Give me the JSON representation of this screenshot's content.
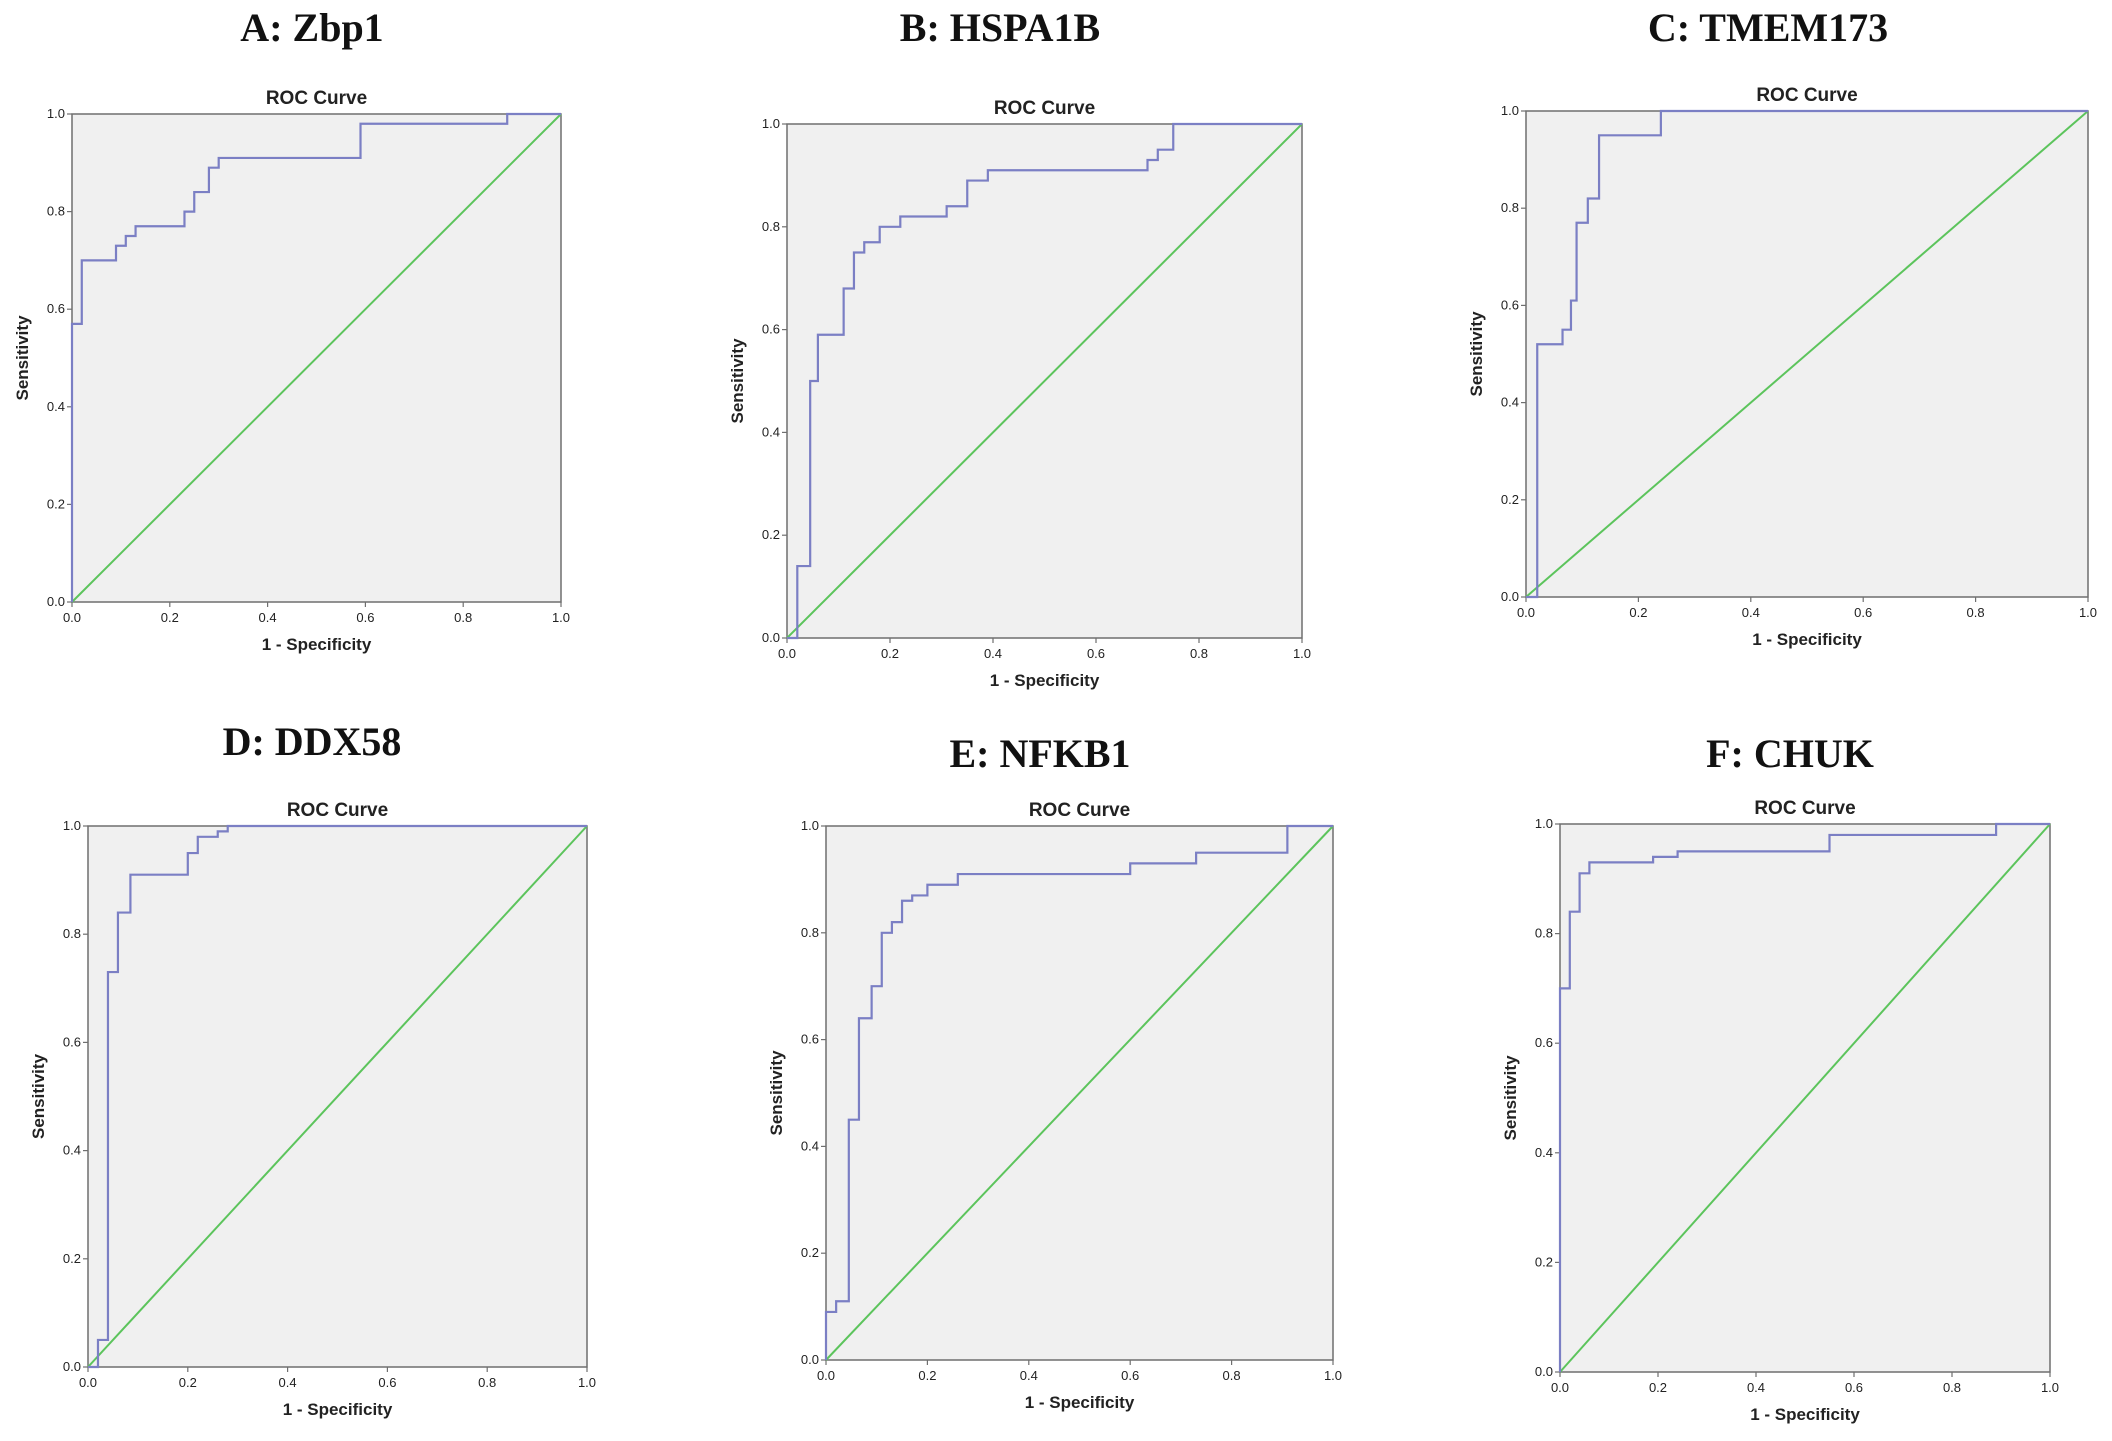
{
  "panels": [
    {
      "title": "A: Zbp1"
    },
    {
      "title": "B: HSPA1B"
    },
    {
      "title": "C: TMEM173"
    },
    {
      "title": "D: DDX58"
    },
    {
      "title": "E: NFKB1"
    },
    {
      "title": "F: CHUK"
    }
  ],
  "colors": {
    "roc_curve": "#7b7fc4",
    "reference_line": "#5cc45c",
    "plot_background": "#f0f0f0",
    "axis": "#6f6f6f"
  },
  "chart_data": [
    {
      "type": "line",
      "title": "ROC Curve",
      "xlabel": "1 - Specificity",
      "ylabel": "Sensitivity",
      "xlim": [
        0,
        1
      ],
      "ylim": [
        0,
        1
      ],
      "xticks": [
        "0.0",
        "0.2",
        "0.4",
        "0.6",
        "0.8",
        "1.0"
      ],
      "yticks": [
        "0.0",
        "0.2",
        "0.4",
        "0.6",
        "0.8",
        "1.0"
      ],
      "grid": false,
      "series": [
        {
          "x": [
            0,
            0,
            0.02,
            0.02,
            0.09,
            0.09,
            0.11,
            0.11,
            0.13,
            0.13,
            0.23,
            0.23,
            0.25,
            0.25,
            0.28,
            0.28,
            0.3,
            0.3,
            0.59,
            0.59,
            0.89,
            0.89,
            1.0
          ],
          "y": [
            0,
            0.57,
            0.57,
            0.7,
            0.7,
            0.73,
            0.73,
            0.75,
            0.75,
            0.77,
            0.77,
            0.8,
            0.8,
            0.84,
            0.84,
            0.89,
            0.89,
            0.91,
            0.91,
            0.98,
            0.98,
            1.0,
            1.0
          ]
        },
        {
          "x": [
            0,
            1
          ],
          "y": [
            0,
            1
          ]
        }
      ]
    },
    {
      "type": "line",
      "title": "ROC Curve",
      "xlabel": "1 - Specificity",
      "ylabel": "Sensitivity",
      "xlim": [
        0,
        1
      ],
      "ylim": [
        0,
        1
      ],
      "xticks": [
        "0.0",
        "0.2",
        "0.4",
        "0.6",
        "0.8",
        "1.0"
      ],
      "yticks": [
        "0.0",
        "0.2",
        "0.4",
        "0.6",
        "0.8",
        "1.0"
      ],
      "grid": false,
      "series": [
        {
          "x": [
            0,
            0.02,
            0.02,
            0.045,
            0.045,
            0.06,
            0.06,
            0.11,
            0.11,
            0.13,
            0.13,
            0.15,
            0.15,
            0.18,
            0.18,
            0.22,
            0.22,
            0.31,
            0.31,
            0.35,
            0.35,
            0.39,
            0.39,
            0.7,
            0.7,
            0.72,
            0.72,
            0.75,
            0.75,
            0.78,
            0.78,
            1.0
          ],
          "y": [
            0,
            0,
            0.14,
            0.14,
            0.5,
            0.5,
            0.59,
            0.59,
            0.68,
            0.68,
            0.75,
            0.75,
            0.77,
            0.77,
            0.8,
            0.8,
            0.82,
            0.82,
            0.84,
            0.84,
            0.89,
            0.89,
            0.91,
            0.91,
            0.93,
            0.93,
            0.95,
            0.95,
            1.0,
            1.0,
            1.0,
            1.0
          ]
        },
        {
          "x": [
            0,
            1
          ],
          "y": [
            0,
            1
          ]
        }
      ]
    },
    {
      "type": "line",
      "title": "ROC Curve",
      "xlabel": "1 - Specificity",
      "ylabel": "Sensitivity",
      "xlim": [
        0,
        1
      ],
      "ylim": [
        0,
        1
      ],
      "xticks": [
        "0.0",
        "0.2",
        "0.4",
        "0.6",
        "0.8",
        "1.0"
      ],
      "yticks": [
        "0.0",
        "0.2",
        "0.4",
        "0.6",
        "0.8",
        "1.0"
      ],
      "grid": false,
      "series": [
        {
          "x": [
            0,
            0.02,
            0.02,
            0.065,
            0.065,
            0.08,
            0.08,
            0.09,
            0.09,
            0.11,
            0.11,
            0.13,
            0.13,
            0.24,
            0.24,
            1.0
          ],
          "y": [
            0,
            0,
            0.52,
            0.52,
            0.55,
            0.55,
            0.61,
            0.61,
            0.77,
            0.77,
            0.82,
            0.82,
            0.95,
            0.95,
            1.0,
            1.0
          ]
        },
        {
          "x": [
            0,
            1
          ],
          "y": [
            0,
            1
          ]
        }
      ]
    },
    {
      "type": "line",
      "title": "ROC Curve",
      "xlabel": "1 - Specificity",
      "ylabel": "Sensitivity",
      "xlim": [
        0,
        1
      ],
      "ylim": [
        0,
        1
      ],
      "xticks": [
        "0.0",
        "0.2",
        "0.4",
        "0.6",
        "0.8",
        "1.0"
      ],
      "yticks": [
        "0.0",
        "0.2",
        "0.4",
        "0.6",
        "0.8",
        "1.0"
      ],
      "grid": false,
      "series": [
        {
          "x": [
            0,
            0.02,
            0.02,
            0.04,
            0.04,
            0.06,
            0.06,
            0.085,
            0.085,
            0.2,
            0.2,
            0.22,
            0.22,
            0.26,
            0.26,
            0.28,
            0.28,
            1.0
          ],
          "y": [
            0,
            0,
            0.05,
            0.05,
            0.73,
            0.73,
            0.84,
            0.84,
            0.91,
            0.91,
            0.95,
            0.95,
            0.98,
            0.98,
            0.99,
            0.99,
            1.0,
            1.0
          ]
        },
        {
          "x": [
            0,
            1
          ],
          "y": [
            0,
            1
          ]
        }
      ]
    },
    {
      "type": "line",
      "title": "ROC Curve",
      "xlabel": "1 - Specificity",
      "ylabel": "Sensitivity",
      "xlim": [
        0,
        1
      ],
      "ylim": [
        0,
        1
      ],
      "xticks": [
        "0.0",
        "0.2",
        "0.4",
        "0.6",
        "0.8",
        "1.0"
      ],
      "yticks": [
        "0.0",
        "0.2",
        "0.4",
        "0.6",
        "0.8",
        "1.0"
      ],
      "grid": false,
      "series": [
        {
          "x": [
            0,
            0,
            0.02,
            0.02,
            0.045,
            0.045,
            0.065,
            0.065,
            0.09,
            0.09,
            0.11,
            0.11,
            0.13,
            0.13,
            0.15,
            0.15,
            0.17,
            0.17,
            0.2,
            0.2,
            0.26,
            0.26,
            0.6,
            0.6,
            0.73,
            0.73,
            0.91,
            0.91,
            1.0
          ],
          "y": [
            0,
            0.09,
            0.09,
            0.11,
            0.11,
            0.45,
            0.45,
            0.64,
            0.64,
            0.7,
            0.7,
            0.8,
            0.8,
            0.82,
            0.82,
            0.86,
            0.86,
            0.87,
            0.87,
            0.89,
            0.89,
            0.91,
            0.91,
            0.93,
            0.93,
            0.95,
            0.95,
            1.0,
            1.0
          ]
        },
        {
          "x": [
            0,
            1
          ],
          "y": [
            0,
            1
          ]
        }
      ]
    },
    {
      "type": "line",
      "title": "ROC Curve",
      "xlabel": "1 - Specificity",
      "ylabel": "Sensitivity",
      "xlim": [
        0,
        1
      ],
      "ylim": [
        0,
        1
      ],
      "xticks": [
        "0.0",
        "0.2",
        "0.4",
        "0.6",
        "0.8",
        "1.0"
      ],
      "yticks": [
        "0.0",
        "0.2",
        "0.4",
        "0.6",
        "0.8",
        "1.0"
      ],
      "grid": false,
      "series": [
        {
          "x": [
            0,
            0,
            0.02,
            0.02,
            0.04,
            0.04,
            0.06,
            0.06,
            0.19,
            0.19,
            0.24,
            0.24,
            0.55,
            0.55,
            0.89,
            0.89,
            1.0
          ],
          "y": [
            0,
            0.7,
            0.7,
            0.84,
            0.84,
            0.91,
            0.91,
            0.93,
            0.93,
            0.94,
            0.94,
            0.95,
            0.95,
            0.98,
            0.98,
            1.0,
            1.0
          ]
        },
        {
          "x": [
            0,
            1
          ],
          "y": [
            0,
            1
          ]
        }
      ]
    }
  ]
}
